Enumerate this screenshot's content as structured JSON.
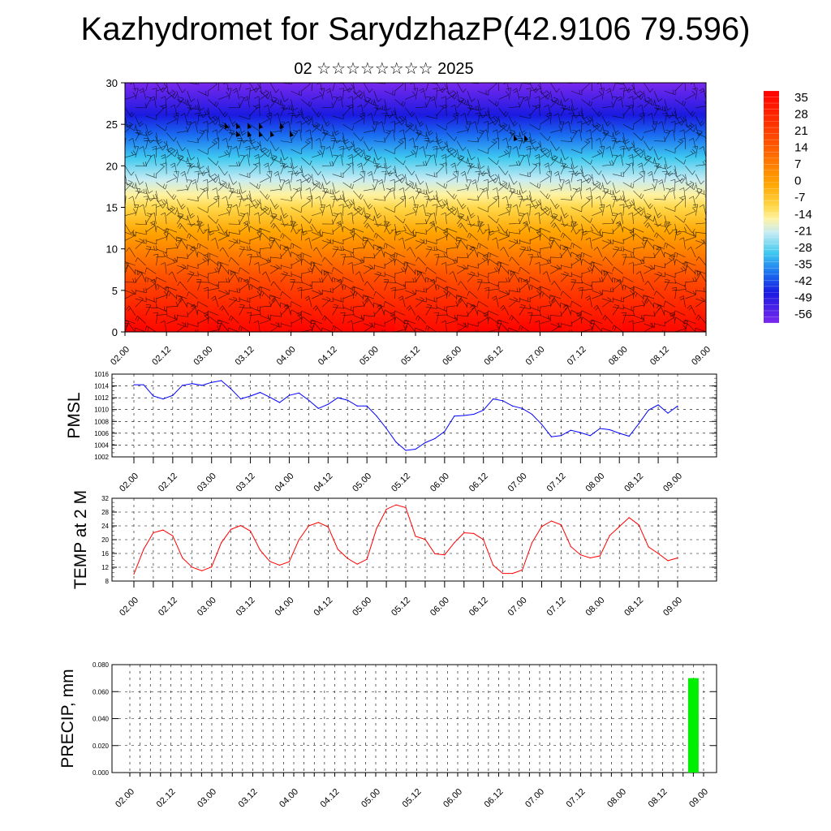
{
  "title": "Kazhydromet for SarydzhazP(42.9106 79.596)",
  "subtitle": "02 ☆☆☆☆☆☆☆☆ 2025",
  "x_tick_labels": [
    "02.00",
    "02.12",
    "03.00",
    "03.12",
    "04.00",
    "04.12",
    "05.00",
    "05.12",
    "06.00",
    "06.12",
    "07.00",
    "07.12",
    "08.00",
    "08.12",
    "09.00"
  ],
  "chart_data": [
    {
      "type": "heatmap",
      "name": "cross-section",
      "ylim": [
        0,
        30
      ],
      "yticks": [
        0,
        5,
        10,
        15,
        20,
        25,
        30
      ],
      "colorbar_labels": [
        "35",
        "28",
        "21",
        "14",
        "7",
        "0",
        "-7",
        "-14",
        "-21",
        "-28",
        "-35",
        "-42",
        "-49",
        "-56"
      ],
      "colorscale": [
        {
          "t": 0.0,
          "color": "#ff0000"
        },
        {
          "t": 0.22,
          "color": "#ff5000"
        },
        {
          "t": 0.4,
          "color": "#ffa500"
        },
        {
          "t": 0.5,
          "color": "#ffd84a"
        },
        {
          "t": 0.55,
          "color": "#fff2a0"
        },
        {
          "t": 0.61,
          "color": "#c8ecf2"
        },
        {
          "t": 0.7,
          "color": "#3ec8f0"
        },
        {
          "t": 0.79,
          "color": "#1a6cf0"
        },
        {
          "t": 0.87,
          "color": "#1a1ae0"
        },
        {
          "t": 1.0,
          "color": "#7a28ee"
        }
      ],
      "level_labels": [
        0,
        5,
        10,
        15,
        20,
        25,
        30
      ]
    },
    {
      "type": "line",
      "ylabel": "PMSL",
      "ylim": [
        1002,
        1016
      ],
      "yticks": [
        1002,
        1004,
        1006,
        1008,
        1010,
        1012,
        1014,
        1016
      ],
      "color": "#0000ff",
      "x_hours": [
        0,
        3,
        6,
        9,
        12,
        15,
        18,
        21,
        24,
        27,
        30,
        33,
        36,
        39,
        42,
        45,
        48,
        51,
        54,
        57,
        60,
        63,
        66,
        69,
        72,
        75,
        78,
        81,
        84,
        87,
        90,
        93,
        96,
        99,
        102,
        105,
        108,
        111,
        114,
        117,
        120,
        123,
        126,
        129,
        132,
        135,
        138,
        141,
        144,
        147,
        150,
        153,
        156,
        159,
        162,
        165,
        168
      ],
      "values": [
        1014.2,
        1014.2,
        1012.3,
        1011.8,
        1012.4,
        1014.1,
        1014.4,
        1014.1,
        1014.6,
        1014.9,
        1013.5,
        1011.8,
        1012.3,
        1012.9,
        1012.1,
        1011.2,
        1012.4,
        1012.8,
        1011.6,
        1010.2,
        1010.9,
        1012.0,
        1011.6,
        1010.6,
        1010.6,
        1008.9,
        1006.8,
        1004.5,
        1003.1,
        1003.3,
        1004.4,
        1005.1,
        1006.3,
        1008.9,
        1009.0,
        1009.2,
        1009.9,
        1011.8,
        1011.5,
        1010.6,
        1010.2,
        1009.2,
        1007.5,
        1005.4,
        1005.6,
        1006.5,
        1006.1,
        1005.6,
        1006.8,
        1006.6,
        1006.0,
        1005.5,
        1007.6,
        1009.9,
        1010.8,
        1009.4,
        1010.6
      ]
    },
    {
      "type": "line",
      "ylabel": "TEMP at 2 M",
      "ylim": [
        8,
        32
      ],
      "yticks": [
        8,
        12,
        16,
        20,
        24,
        28,
        32
      ],
      "color": "#ff0000",
      "x_hours": [
        0,
        3,
        6,
        9,
        12,
        15,
        18,
        21,
        24,
        27,
        30,
        33,
        36,
        39,
        42,
        45,
        48,
        51,
        54,
        57,
        60,
        63,
        66,
        69,
        72,
        75,
        78,
        81,
        84,
        87,
        90,
        93,
        96,
        99,
        102,
        105,
        108,
        111,
        114,
        117,
        120,
        123,
        126,
        129,
        132,
        135,
        138,
        141,
        144,
        147,
        150,
        153,
        156,
        159,
        162,
        165,
        168
      ],
      "values": [
        10.0,
        17.2,
        22.0,
        22.8,
        21.1,
        14.7,
        12.0,
        11.0,
        12.1,
        19.1,
        23.0,
        24.1,
        22.5,
        17.0,
        13.7,
        12.6,
        13.6,
        20.0,
        24.0,
        25.0,
        23.7,
        17.2,
        14.6,
        12.9,
        14.3,
        23.3,
        28.8,
        30.1,
        29.3,
        21.0,
        20.1,
        15.9,
        15.6,
        19.1,
        22.0,
        21.8,
        20.0,
        12.6,
        10.2,
        10.2,
        11.2,
        19.1,
        23.8,
        25.4,
        24.3,
        18.0,
        15.6,
        14.7,
        15.3,
        21.2,
        23.8,
        26.4,
        24.3,
        17.9,
        16.0,
        13.9,
        14.7
      ]
    },
    {
      "type": "bar",
      "ylabel": "PRECIP, mm",
      "ylim": [
        0,
        0.08
      ],
      "yticks": [
        "0.000",
        "0.020",
        "0.040",
        "0.060",
        "0.080"
      ],
      "color": "#00ee00",
      "bars": [
        {
          "x_hour": 165,
          "value": 0.07
        }
      ]
    }
  ]
}
